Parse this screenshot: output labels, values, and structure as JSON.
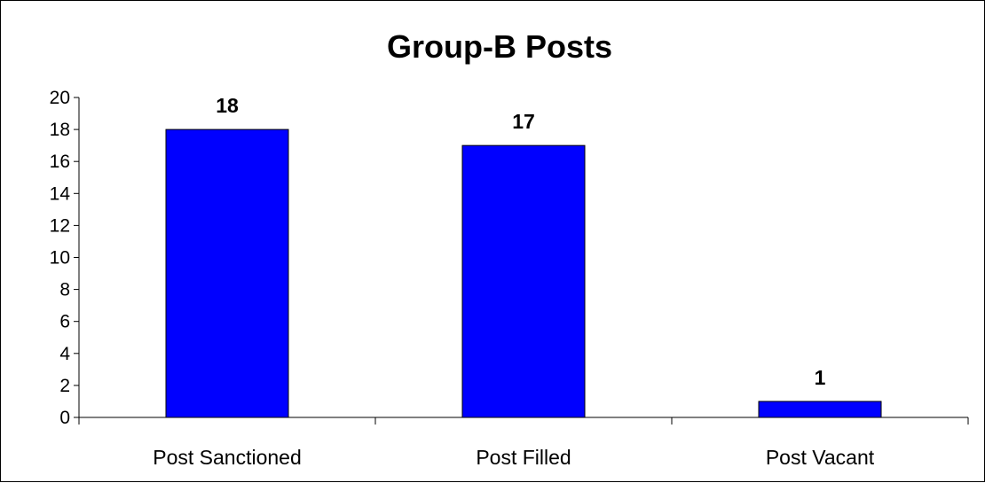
{
  "chart_data": {
    "type": "bar",
    "title": "Group-B Posts",
    "categories": [
      "Post Sanctioned",
      "Post Filled",
      "Post Vacant"
    ],
    "values": [
      18,
      17,
      1
    ],
    "data_labels": [
      "18",
      "17",
      "1"
    ],
    "y_ticks": [
      "0",
      "2",
      "4",
      "6",
      "8",
      "10",
      "12",
      "14",
      "16",
      "18",
      "20"
    ],
    "ylim": [
      0,
      20
    ],
    "xlabel": "",
    "ylabel": "",
    "grid": false,
    "legend": "none",
    "bar_color": "#0000FF"
  }
}
